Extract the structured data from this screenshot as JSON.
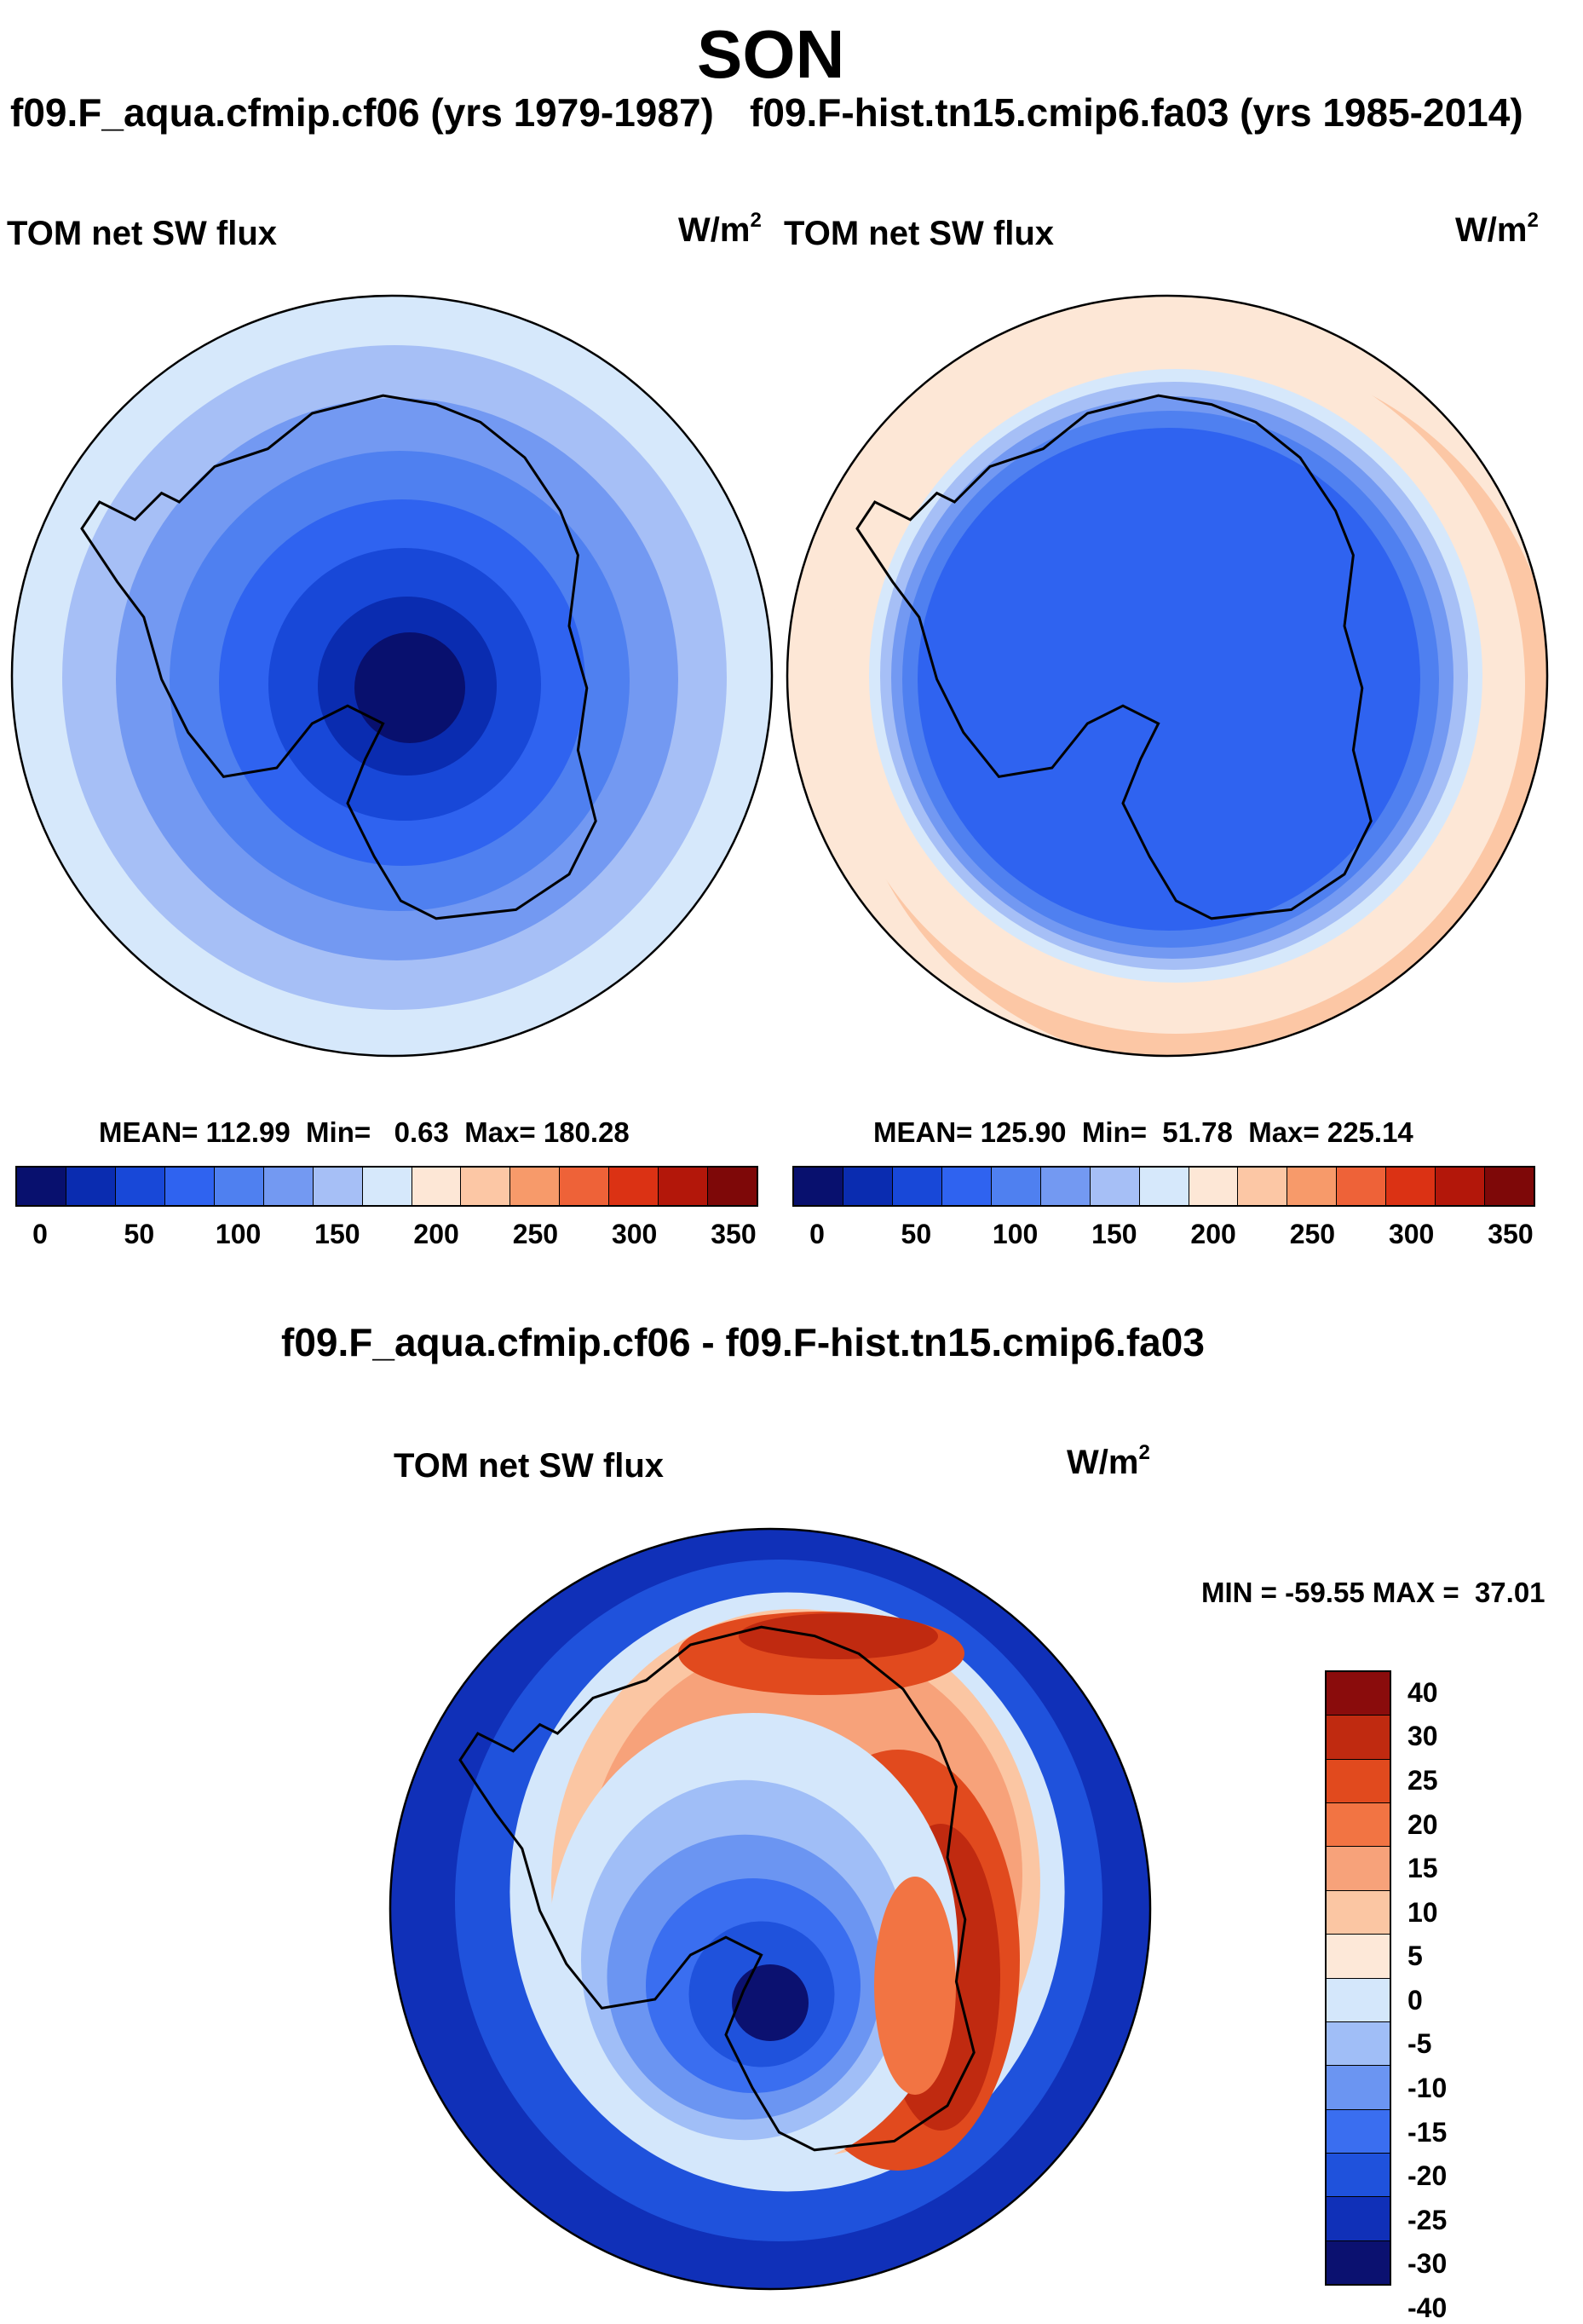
{
  "page": {
    "title": "SON"
  },
  "colors": {
    "seq": [
      "#08106e",
      "#0a2cb0",
      "#1848d8",
      "#2f63f0",
      "#4f80f0",
      "#7399f2",
      "#a6bff6",
      "#d6e8fb",
      "#fde7d6",
      "#fcc7a5",
      "#f79a6a",
      "#ee6238",
      "#db3214",
      "#b3170a",
      "#7e0808"
    ],
    "div": [
      "#0b1170",
      "#1030b8",
      "#1f52dc",
      "#3a6ef0",
      "#6b95f2",
      "#a0bef7",
      "#d4e7fb",
      "#fde8d8",
      "#fbc6a3",
      "#f7a27a",
      "#f27443",
      "#e14a1e",
      "#c02a10",
      "#8a0c0c"
    ],
    "coast": "#000000"
  },
  "panels": {
    "left": {
      "case_label": "f09.F_aqua.cfmip.cf06 (yrs 1979-1987)",
      "var_name": "TOM net SW flux",
      "units_base": "W/m",
      "units_exp": "2",
      "stats": "MEAN= 112.99  Min=   0.63  Max= 180.28"
    },
    "right": {
      "case_label": "f09.F-hist.tn15.cmip6.fa03 (yrs 1985-2014)",
      "var_name": "TOM net SW flux",
      "units_base": "W/m",
      "units_exp": "2",
      "stats": "MEAN= 125.90  Min=  51.78  Max= 225.14"
    },
    "diff": {
      "title": "f09.F_aqua.cfmip.cf06 - f09.F-hist.tn15.cmip6.fa03",
      "var_name": "TOM net SW flux",
      "units_base": "W/m",
      "units_exp": "2",
      "minmax": "MIN = -59.55 MAX =  37.01"
    }
  },
  "chart_data": [
    {
      "type": "heatmap",
      "projection": "south polar stereographic",
      "title": "TOM net SW flux",
      "case": "f09.F_aqua.cfmip.cf06 (yrs 1979-1987)",
      "units": "W/m2",
      "stats": {
        "mean": 112.99,
        "min": 0.63,
        "max": 180.28
      },
      "colorbar_ticks": [
        "0",
        "50",
        "100",
        "150",
        "200",
        "250",
        "300",
        "350"
      ],
      "contour_levels": [
        0,
        25,
        50,
        75,
        100,
        125,
        150,
        175,
        200,
        225,
        250,
        275,
        300,
        325,
        350
      ],
      "pattern": "zonally symmetric rings: ~0-25 at pole rising to ~175 at outer edge"
    },
    {
      "type": "heatmap",
      "projection": "south polar stereographic",
      "title": "TOM net SW flux",
      "case": "f09.F-hist.tn15.cmip6.fa03 (yrs 1985-2014)",
      "units": "W/m2",
      "stats": {
        "mean": 125.9,
        "min": 51.78,
        "max": 225.14
      },
      "colorbar_ticks": [
        "0",
        "50",
        "100",
        "150",
        "200",
        "250",
        "300",
        "350"
      ],
      "contour_levels": [
        0,
        25,
        50,
        75,
        100,
        125,
        150,
        175,
        200,
        225,
        250,
        275,
        300,
        325,
        350
      ],
      "pattern": "~50-75 over Antarctic continent, 100-175 over sea ice belt, 175-225 over ocean"
    },
    {
      "type": "heatmap",
      "projection": "south polar stereographic",
      "title": "f09.F_aqua.cfmip.cf06 - f09.F-hist.tn15.cmip6.fa03",
      "units": "W/m2",
      "stats": {
        "min": -59.55,
        "max": 37.01
      },
      "colorbar_ticks": [
        "40",
        "30",
        "25",
        "20",
        "15",
        "10",
        "5",
        "0",
        "-5",
        "-10",
        "-15",
        "-20",
        "-25",
        "-30",
        "-40"
      ],
      "pattern": "negative over pole and outer ocean, positive ring (10-40) along coast and sea ice zone"
    }
  ]
}
